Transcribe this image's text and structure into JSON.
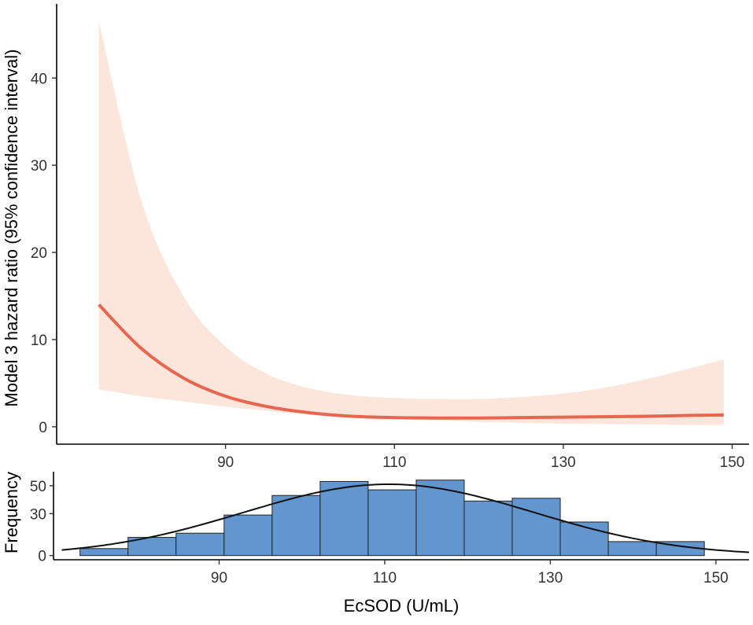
{
  "chart_data": [
    {
      "type": "line",
      "title": "",
      "xlabel": "",
      "ylabel": "Model 3 hazard ratio (95% confidence interval)",
      "xlim": [
        70,
        152
      ],
      "ylim": [
        -2,
        48.5
      ],
      "xticks": [
        90,
        110,
        130,
        150
      ],
      "yticks": [
        0,
        10,
        20,
        30,
        40
      ],
      "grid": false,
      "colors": {
        "line": "#e8654f",
        "ribbon": "#fce5da"
      },
      "series": [
        {
          "x": [
            75,
            80,
            85,
            90,
            95,
            100,
            105,
            110,
            115,
            120,
            125,
            130,
            135,
            140,
            145,
            149
          ],
          "hr": [
            14.0,
            9.0,
            5.6,
            3.5,
            2.3,
            1.6,
            1.2,
            1.05,
            1.0,
            1.0,
            1.05,
            1.1,
            1.15,
            1.2,
            1.3,
            1.35
          ],
          "lower": [
            4.3,
            3.5,
            2.9,
            2.3,
            1.8,
            1.4,
            1.1,
            0.9,
            0.7,
            0.55,
            0.45,
            0.35,
            0.3,
            0.25,
            0.2,
            0.2
          ],
          "upper": [
            46.5,
            26.0,
            15.0,
            9.2,
            6.0,
            4.4,
            3.6,
            3.3,
            3.2,
            3.2,
            3.4,
            3.8,
            4.5,
            5.5,
            6.7,
            7.7
          ]
        }
      ]
    },
    {
      "type": "bar",
      "title": "",
      "xlabel": "EcSOD (U/mL)",
      "ylabel": "Frequency",
      "xlim": [
        70,
        154
      ],
      "ylim": [
        -3,
        60
      ],
      "xticks": [
        90,
        110,
        130,
        150
      ],
      "yticks": [
        0,
        30,
        50
      ],
      "grid": false,
      "colors": {
        "bar": "#6396cf",
        "bar_border": "#222222",
        "curve": "#111111"
      },
      "bin_width": 5.8,
      "bin_starts": [
        73.2,
        79.0,
        84.8,
        90.6,
        96.4,
        102.2,
        108.0,
        113.8,
        119.6,
        125.4,
        131.2,
        137.0,
        142.8
      ],
      "values": [
        5,
        13,
        16,
        29,
        43,
        53,
        47,
        54,
        39,
        41,
        24,
        10,
        10
      ],
      "normal_curve": {
        "mean": 110.5,
        "sd": 17.5,
        "peak": 51
      }
    }
  ]
}
